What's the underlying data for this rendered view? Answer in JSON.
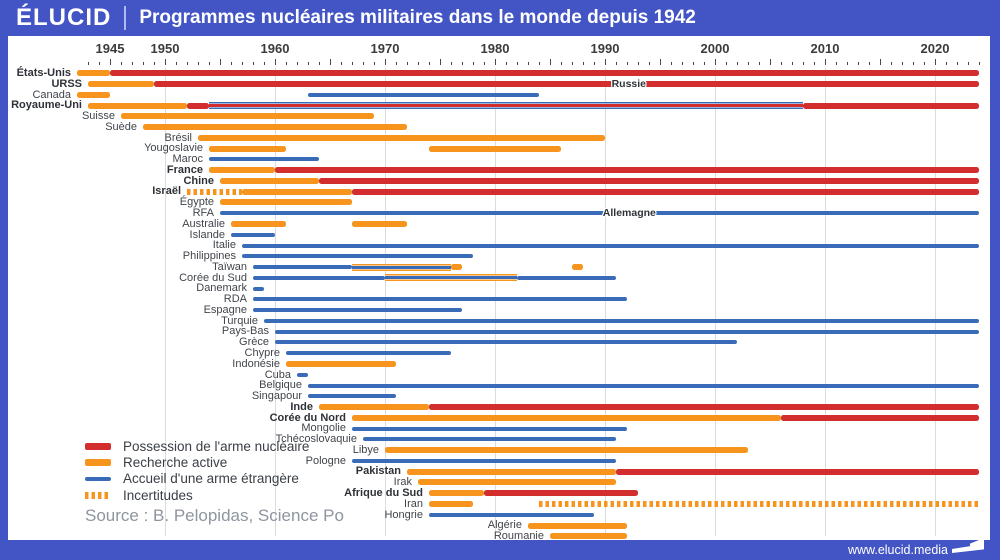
{
  "header": {
    "logo": "ÉLUCID",
    "title": "Programmes nucléaires militaires dans le monde depuis 1942"
  },
  "source": "Source : B. Pelopidas, Science Po",
  "footer": {
    "url": "www.elucid.media"
  },
  "colors": {
    "frame_blue": "#4355c4",
    "possession_red": "#d32e2e",
    "recherche_orange": "#f6941d",
    "accueil_blue": "#3a6bb8",
    "gridline": "#dcdcdc"
  },
  "legend": {
    "items": [
      {
        "kind": "possession",
        "label": "Possession de l'arme nucléaire"
      },
      {
        "kind": "recherche",
        "label": "Recherche active"
      },
      {
        "kind": "accueil",
        "label": "Accueil d'une arme étrangère"
      },
      {
        "kind": "incertitudes",
        "label": "Incertitudes"
      }
    ]
  },
  "chart_data": {
    "type": "gantt-timeline",
    "title": "Programmes nucléaires militaires dans le monde depuis 1942",
    "x_axis": {
      "start_year": 1942,
      "end_year": 2025,
      "labeled_years": [
        1945,
        1950,
        1960,
        1970,
        1980,
        1990,
        2000,
        2010,
        2020
      ],
      "gridline_years": [
        1950,
        1960,
        1970,
        1980,
        1990,
        2000,
        2010,
        2020
      ],
      "minor_tick_every": 1,
      "major_tick_every": 5
    },
    "segment_kinds": {
      "possession": "Possession de l'arme nucléaire",
      "recherche": "Recherche active",
      "accueil": "Accueil d'une arme étrangère",
      "incertitudes": "Incertitudes",
      "possession_accueil": "Possession + accueil simultanés",
      "recherche_accueil": "Recherche + accueil simultanés"
    },
    "rows": [
      {
        "country": "États-Unis",
        "bold": true,
        "segments": [
          [
            "recherche",
            1942,
            1945
          ],
          [
            "possession",
            1945,
            2024
          ]
        ]
      },
      {
        "country": "URSS",
        "bold": true,
        "segments": [
          [
            "recherche",
            1943,
            1949
          ],
          [
            "possession",
            1949,
            2024
          ]
        ],
        "overlay": {
          "text": "Russie",
          "year": 1990.6
        }
      },
      {
        "country": "Canada",
        "bold": false,
        "segments": [
          [
            "recherche",
            1942,
            1945
          ],
          [
            "accueil",
            1963,
            1984
          ]
        ]
      },
      {
        "country": "Royaume-Uni",
        "bold": true,
        "segments": [
          [
            "recherche",
            1943,
            1952
          ],
          [
            "possession",
            1952,
            1954
          ],
          [
            "possession_accueil",
            1954,
            2008
          ],
          [
            "possession",
            2008,
            2024
          ]
        ]
      },
      {
        "country": "Suisse",
        "bold": false,
        "segments": [
          [
            "recherche",
            1946,
            1969
          ]
        ]
      },
      {
        "country": "Suède",
        "bold": false,
        "segments": [
          [
            "recherche",
            1948,
            1972
          ]
        ]
      },
      {
        "country": "Brésil",
        "bold": false,
        "segments": [
          [
            "recherche",
            1953,
            1990
          ]
        ]
      },
      {
        "country": "Yougoslavie",
        "bold": false,
        "segments": [
          [
            "recherche",
            1954,
            1961
          ],
          [
            "recherche",
            1974,
            1986
          ]
        ]
      },
      {
        "country": "Maroc",
        "bold": false,
        "segments": [
          [
            "accueil",
            1954,
            1964
          ]
        ]
      },
      {
        "country": "France",
        "bold": true,
        "segments": [
          [
            "recherche",
            1954,
            1960
          ],
          [
            "possession",
            1960,
            2024
          ]
        ]
      },
      {
        "country": "Chine",
        "bold": true,
        "segments": [
          [
            "recherche",
            1955,
            1964
          ],
          [
            "possession",
            1964,
            2024
          ]
        ]
      },
      {
        "country": "Israël",
        "bold": true,
        "segments": [
          [
            "incertitudes",
            1952,
            1957
          ],
          [
            "recherche",
            1957,
            1967
          ],
          [
            "possession",
            1967,
            2024
          ]
        ]
      },
      {
        "country": "Égypte",
        "bold": false,
        "segments": [
          [
            "recherche",
            1955,
            1967
          ]
        ]
      },
      {
        "country": "RFA",
        "bold": false,
        "segments": [
          [
            "accueil",
            1955,
            2024
          ]
        ],
        "overlay": {
          "text": "Allemagne",
          "year": 1989.8
        }
      },
      {
        "country": "Australie",
        "bold": false,
        "segments": [
          [
            "recherche",
            1956,
            1961
          ],
          [
            "recherche",
            1967,
            1972
          ]
        ]
      },
      {
        "country": "Islande",
        "bold": false,
        "segments": [
          [
            "accueil",
            1956,
            1960
          ]
        ]
      },
      {
        "country": "Italie",
        "bold": false,
        "segments": [
          [
            "accueil",
            1957,
            2024
          ]
        ]
      },
      {
        "country": "Philippines",
        "bold": false,
        "segments": [
          [
            "accueil",
            1957,
            1978
          ]
        ]
      },
      {
        "country": "Taïwan",
        "bold": false,
        "segments": [
          [
            "accueil",
            1958,
            1967
          ],
          [
            "recherche_accueil",
            1967,
            1976
          ],
          [
            "recherche",
            1976,
            1977
          ],
          [
            "recherche",
            1987,
            1988
          ]
        ]
      },
      {
        "country": "Corée du Sud",
        "bold": false,
        "segments": [
          [
            "accueil",
            1958,
            1970
          ],
          [
            "recherche_accueil",
            1970,
            1982
          ],
          [
            "accueil",
            1982,
            1991
          ]
        ]
      },
      {
        "country": "Danemark",
        "bold": false,
        "segments": [
          [
            "accueil",
            1958,
            1959
          ]
        ]
      },
      {
        "country": "RDA",
        "bold": false,
        "segments": [
          [
            "accueil",
            1958,
            1992
          ]
        ]
      },
      {
        "country": "Espagne",
        "bold": false,
        "segments": [
          [
            "accueil",
            1958,
            1977
          ]
        ]
      },
      {
        "country": "Turquie",
        "bold": false,
        "segments": [
          [
            "accueil",
            1959,
            2024
          ]
        ]
      },
      {
        "country": "Pays-Bas",
        "bold": false,
        "segments": [
          [
            "accueil",
            1960,
            2024
          ]
        ]
      },
      {
        "country": "Grèce",
        "bold": false,
        "segments": [
          [
            "accueil",
            1960,
            2002
          ]
        ]
      },
      {
        "country": "Chypre",
        "bold": false,
        "segments": [
          [
            "accueil",
            1961,
            1976
          ]
        ]
      },
      {
        "country": "Indonésie",
        "bold": false,
        "segments": [
          [
            "recherche",
            1961,
            1971
          ]
        ]
      },
      {
        "country": "Cuba",
        "bold": false,
        "segments": [
          [
            "accueil",
            1962,
            1963
          ]
        ]
      },
      {
        "country": "Belgique",
        "bold": false,
        "segments": [
          [
            "accueil",
            1963,
            2024
          ]
        ]
      },
      {
        "country": "Singapour",
        "bold": false,
        "segments": [
          [
            "accueil",
            1963,
            1971
          ]
        ]
      },
      {
        "country": "Inde",
        "bold": true,
        "segments": [
          [
            "recherche",
            1964,
            1974
          ],
          [
            "possession",
            1974,
            2024
          ]
        ]
      },
      {
        "country": "Corée du Nord",
        "bold": true,
        "segments": [
          [
            "recherche",
            1967,
            2006
          ],
          [
            "possession",
            2006,
            2024
          ]
        ]
      },
      {
        "country": "Mongolie",
        "bold": false,
        "segments": [
          [
            "accueil",
            1967,
            1992
          ]
        ]
      },
      {
        "country": "Tchécoslovaquie",
        "bold": false,
        "segments": [
          [
            "accueil",
            1968,
            1991
          ]
        ]
      },
      {
        "country": "Libye",
        "bold": false,
        "segments": [
          [
            "recherche",
            1970,
            2003
          ]
        ]
      },
      {
        "country": "Pologne",
        "bold": false,
        "segments": [
          [
            "accueil",
            1967,
            1991
          ]
        ]
      },
      {
        "country": "Pakistan",
        "bold": true,
        "segments": [
          [
            "recherche",
            1972,
            1991
          ],
          [
            "possession",
            1991,
            2024
          ]
        ]
      },
      {
        "country": "Irak",
        "bold": false,
        "segments": [
          [
            "recherche",
            1973,
            1991
          ]
        ]
      },
      {
        "country": "Afrique du Sud",
        "bold": true,
        "segments": [
          [
            "recherche",
            1974,
            1979
          ],
          [
            "possession",
            1979,
            1993
          ]
        ]
      },
      {
        "country": "Iran",
        "bold": false,
        "segments": [
          [
            "recherche",
            1974,
            1978
          ],
          [
            "incertitudes",
            1984,
            2024
          ]
        ]
      },
      {
        "country": "Hongrie",
        "bold": false,
        "segments": [
          [
            "accueil",
            1974,
            1989
          ]
        ]
      },
      {
        "country": "Algérie",
        "bold": false,
        "segments": [
          [
            "recherche",
            1983,
            1992
          ]
        ]
      },
      {
        "country": "Roumanie",
        "bold": false,
        "segments": [
          [
            "recherche",
            1985,
            1992
          ]
        ]
      }
    ]
  }
}
